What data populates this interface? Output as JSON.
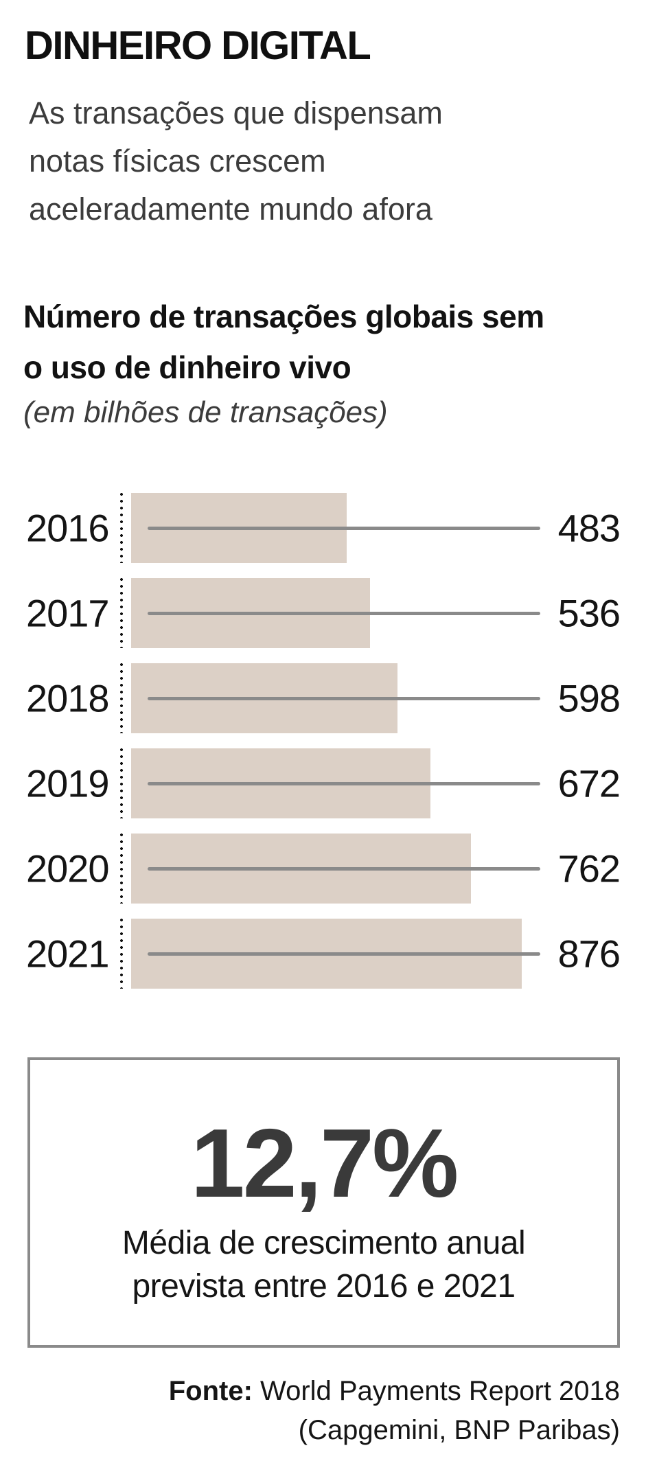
{
  "header": {
    "title": "DINHEIRO DIGITAL",
    "subtitle": "As transações que dispensam\nnotas físicas crescem\naceleradamente mundo afora"
  },
  "chart": {
    "heading": "Número de transações globais sem\no uso de dinheiro vivo",
    "unit_note": "(em bilhões de transações)"
  },
  "chart_data": {
    "type": "bar",
    "orientation": "horizontal",
    "title": "Número de transações globais sem o uso de dinheiro vivo",
    "unit": "em bilhões de transações",
    "categories": [
      "2016",
      "2017",
      "2018",
      "2019",
      "2020",
      "2021"
    ],
    "values": [
      483,
      536,
      598,
      672,
      762,
      876
    ],
    "value_labels": [
      "483",
      "536",
      "598",
      "672",
      "762",
      "876"
    ],
    "xlim": [
      0,
      876
    ],
    "grid": false,
    "legend": "none",
    "bar_color": "#dcd0c6",
    "leader_line_color": "#8a8a8a",
    "axis_style": "dotted"
  },
  "highlight": {
    "stat": "12,7%",
    "caption": "Média de crescimento anual\nprevista entre 2016 e 2021"
  },
  "source": {
    "label": "Fonte:",
    "text": " World Payments Report 2018",
    "line2": "(Capgemini, BNP Paribas)"
  },
  "colors": {
    "bar": "#dcd0c6",
    "leader_line": "#8a8a8a",
    "box_border": "#8a8a8a",
    "stat_text": "#3a3a3a",
    "body_text": "#151515",
    "muted_text": "#3c3c3c"
  }
}
